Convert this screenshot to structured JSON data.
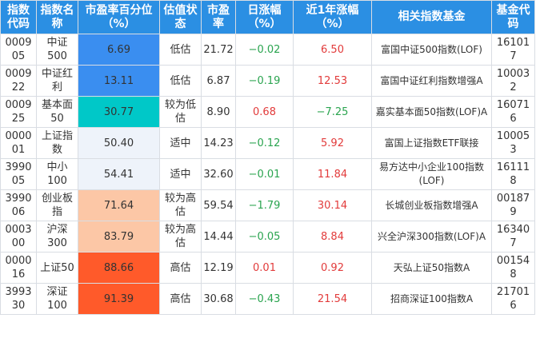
{
  "headers": [
    "指数代码",
    "指数名称",
    "市盈率百分位（%）",
    "估值状态",
    "市盈率",
    "日涨幅（%）",
    "近1年涨幅（%）",
    "相关指数基金",
    "基金代码"
  ],
  "rows": [
    {
      "code": "000905",
      "name": "中证500",
      "pct": "6.69",
      "pct_color": "#3a8ef0",
      "status": "低估",
      "pe": "21.72",
      "daily": "−0.02",
      "daily_dir": "neg",
      "yearly": "6.50",
      "yearly_dir": "pos",
      "fund": "富国中证500指数(LOF)",
      "fund_code": "161017"
    },
    {
      "code": "000922",
      "name": "中证红利",
      "pct": "13.11",
      "pct_color": "#3a8ef0",
      "status": "低估",
      "pe": "6.87",
      "daily": "−0.19",
      "daily_dir": "neg",
      "yearly": "12.53",
      "yearly_dir": "pos",
      "fund": "富国中证红利指数增强A",
      "fund_code": "100032"
    },
    {
      "code": "000925",
      "name": "基本面50",
      "pct": "30.77",
      "pct_color": "#00c8c8",
      "status": "较为低估",
      "pe": "8.90",
      "daily": "0.68",
      "daily_dir": "pos",
      "yearly": "−7.25",
      "yearly_dir": "neg",
      "fund": "嘉实基本面50指数(LOF)A",
      "fund_code": "160716"
    },
    {
      "code": "000001",
      "name": "上证指数",
      "pct": "50.40",
      "pct_color": "#eef3fa",
      "status": "适中",
      "pe": "14.23",
      "daily": "−0.12",
      "daily_dir": "neg",
      "yearly": "5.92",
      "yearly_dir": "pos",
      "fund": "富国上证指数ETF联接",
      "fund_code": "100053"
    },
    {
      "code": "399005",
      "name": "中小100",
      "pct": "54.41",
      "pct_color": "#eef3fa",
      "status": "适中",
      "pe": "32.60",
      "daily": "−0.01",
      "daily_dir": "neg",
      "yearly": "11.84",
      "yearly_dir": "pos",
      "fund": "易方达中小企业100指数(LOF)",
      "fund_code": "161118"
    },
    {
      "code": "399006",
      "name": "创业板指",
      "pct": "71.64",
      "pct_color": "#fcc7a6",
      "status": "较为高估",
      "pe": "59.54",
      "daily": "−1.79",
      "daily_dir": "neg",
      "yearly": "30.14",
      "yearly_dir": "pos",
      "fund": "长城创业板指数增强A",
      "fund_code": "001879"
    },
    {
      "code": "000300",
      "name": "沪深300",
      "pct": "83.79",
      "pct_color": "#fcc7a6",
      "status": "较为高估",
      "pe": "14.44",
      "daily": "−0.05",
      "daily_dir": "neg",
      "yearly": "8.84",
      "yearly_dir": "pos",
      "fund": "兴全沪深300指数(LOF)A",
      "fund_code": "163407"
    },
    {
      "code": "000016",
      "name": "上证50",
      "pct": "88.66",
      "pct_color": "#ff5a2a",
      "status": "高估",
      "pe": "12.19",
      "daily": "0.01",
      "daily_dir": "pos",
      "yearly": "0.92",
      "yearly_dir": "pos",
      "fund": "天弘上证50指数A",
      "fund_code": "001548"
    },
    {
      "code": "399330",
      "name": "深证100",
      "pct": "91.39",
      "pct_color": "#ff5a2a",
      "status": "高估",
      "pe": "30.68",
      "daily": "−0.43",
      "daily_dir": "neg",
      "yearly": "21.54",
      "yearly_dir": "pos",
      "fund": "招商深证100指数A",
      "fund_code": "217016"
    }
  ]
}
